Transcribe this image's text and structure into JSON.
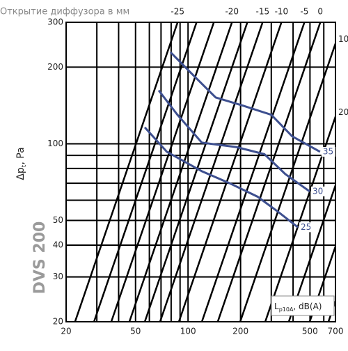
{
  "chart_data": {
    "type": "nomogram",
    "title": "Открытие диффузора в мм",
    "product": "DVS  200",
    "y_label": {
      "main": "Δp",
      "sub": "t",
      "unit": ", Pa"
    },
    "legend_label": {
      "main": "L",
      "sub": "p10A",
      "unit": ", dB(A)"
    },
    "log_scale": true,
    "grid": true,
    "xlim": [
      20,
      700
    ],
    "ylim": [
      20,
      300
    ],
    "xticks": [
      20,
      50,
      100,
      200,
      500,
      700
    ],
    "yticks": [
      20,
      30,
      40,
      50,
      100,
      200,
      300
    ],
    "x_grid": [
      20,
      30,
      40,
      50,
      60,
      70,
      80,
      90,
      100,
      200,
      300,
      400,
      500,
      600,
      700
    ],
    "y_grid": [
      20,
      30,
      40,
      50,
      60,
      70,
      80,
      90,
      100,
      200,
      300
    ],
    "line_color": "#000000",
    "curve_color": "#3d4f8f",
    "opening_lines": [
      {
        "q_at_ymin": 22.5,
        "label": "-25"
      },
      {
        "q_at_ymin": 28.9,
        "label": null
      },
      {
        "q_at_ymin": 36.3,
        "label": null
      },
      {
        "q_at_ymin": 46.1,
        "label": "-20"
      },
      {
        "q_at_ymin": 56.5,
        "label": null
      },
      {
        "q_at_ymin": 69.1,
        "label": "-15"
      },
      {
        "q_at_ymin": 88.6,
        "label": "-10"
      },
      {
        "q_at_ymin": 120,
        "label": "-5"
      },
      {
        "q_at_ymin": 148,
        "label": "0"
      },
      {
        "q_at_ymin": 199,
        "label": "10"
      },
      {
        "q_at_ymin": 277,
        "label": "20"
      },
      {
        "q_at_ymin": 378,
        "label": null
      },
      {
        "q_at_ymin": 498,
        "label": null
      },
      {
        "q_at_ymin": 638,
        "label": null
      }
    ],
    "series": [
      {
        "name": "35",
        "x": [
          79.3,
          104.5,
          144,
          208,
          300,
          395,
          571
        ],
        "values": [
          229,
          189,
          152,
          141,
          130,
          107,
          93
        ]
      },
      {
        "name": "30",
        "x": [
          67.9,
          86.9,
          120,
          190,
          274,
          361,
          498
        ],
        "values": [
          162,
          130,
          101,
          97,
          91,
          76,
          65
        ]
      },
      {
        "name": "25",
        "x": [
          56.5,
          75.6,
          120,
          173,
          250,
          329,
          426
        ],
        "values": [
          116,
          93,
          78,
          70,
          62,
          54,
          47
        ]
      }
    ]
  }
}
